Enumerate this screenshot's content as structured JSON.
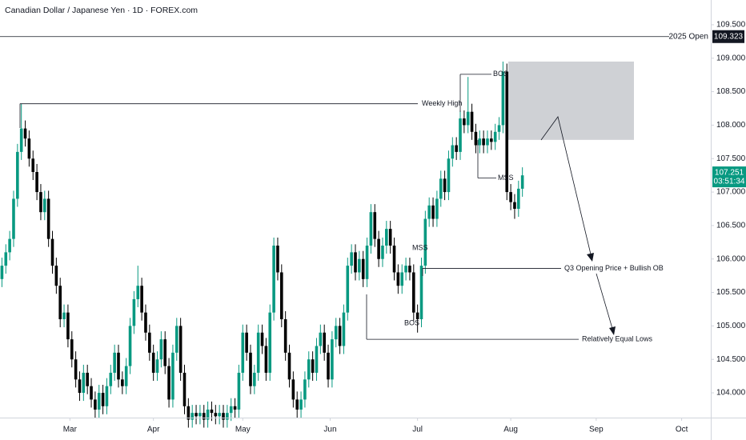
{
  "chart_data": {
    "type": "candlestick",
    "title": "Canadian Dollar / Japanese Yen · 1D · FOREX.com",
    "up_color": "#089981",
    "down_color": "#000000",
    "xlim": [
      -0.5,
      182.5
    ],
    "xticks": [
      {
        "value": 17.5,
        "label": "Mar"
      },
      {
        "value": 39,
        "label": "Apr"
      },
      {
        "value": 62,
        "label": "May"
      },
      {
        "value": 84.5,
        "label": "Jun"
      },
      {
        "value": 107,
        "label": "Jul"
      },
      {
        "value": 131,
        "label": "Aug"
      },
      {
        "value": 153,
        "label": "Sep"
      },
      {
        "value": 175,
        "label": "Oct"
      }
    ],
    "ylim": [
      103.63,
      109.87
    ],
    "yticks": [
      {
        "value": 104,
        "label": "104.000"
      },
      {
        "value": 104.5,
        "label": "104.500"
      },
      {
        "value": 105,
        "label": "105.000"
      },
      {
        "value": 105.5,
        "label": "105.500"
      },
      {
        "value": 106,
        "label": "106.000"
      },
      {
        "value": 106.5,
        "label": "106.500"
      },
      {
        "value": 107,
        "label": "107.000"
      },
      {
        "value": 107.5,
        "label": "107.500"
      },
      {
        "value": 108,
        "label": "108.000"
      },
      {
        "value": 108.5,
        "label": "108.500"
      },
      {
        "value": 109,
        "label": "109.000"
      },
      {
        "value": 109.5,
        "label": "109.500"
      }
    ],
    "candles": [
      [
        105.7,
        106.02,
        105.58,
        105.9
      ],
      [
        105.9,
        106.22,
        105.78,
        106.1
      ],
      [
        106.1,
        106.42,
        105.98,
        106.3
      ],
      [
        106.3,
        107.02,
        106.18,
        106.9
      ],
      [
        106.9,
        107.72,
        106.78,
        107.6
      ],
      [
        107.6,
        108.32,
        107.48,
        107.95
      ],
      [
        107.95,
        108.07,
        107.68,
        107.8
      ],
      [
        107.8,
        107.92,
        107.38,
        107.5
      ],
      [
        107.5,
        107.62,
        107.18,
        107.3
      ],
      [
        107.3,
        107.42,
        106.88,
        107.0
      ],
      [
        107.0,
        107.12,
        106.58,
        106.7
      ],
      [
        106.7,
        107.02,
        106.58,
        106.9
      ],
      [
        106.9,
        107.02,
        106.18,
        106.3
      ],
      [
        106.3,
        106.42,
        105.78,
        105.9
      ],
      [
        105.9,
        106.02,
        105.48,
        105.6
      ],
      [
        105.6,
        105.72,
        104.98,
        105.1
      ],
      [
        105.1,
        105.32,
        104.98,
        105.2
      ],
      [
        105.2,
        105.32,
        104.68,
        104.8
      ],
      [
        104.8,
        104.92,
        104.38,
        104.5
      ],
      [
        104.5,
        104.62,
        104.08,
        104.2
      ],
      [
        104.2,
        104.32,
        103.88,
        104.0
      ],
      [
        104.0,
        104.42,
        103.88,
        104.3
      ],
      [
        104.3,
        104.42,
        103.98,
        104.1
      ],
      [
        104.1,
        104.22,
        103.78,
        103.9
      ],
      [
        103.9,
        104.02,
        103.63,
        103.75
      ],
      [
        103.75,
        104.12,
        103.63,
        104.0
      ],
      [
        104.0,
        104.12,
        103.68,
        103.8
      ],
      [
        103.8,
        104.22,
        103.68,
        104.1
      ],
      [
        104.1,
        104.42,
        103.98,
        104.3
      ],
      [
        104.3,
        104.72,
        104.18,
        104.6
      ],
      [
        104.6,
        104.72,
        104.08,
        104.2
      ],
      [
        104.2,
        104.32,
        103.98,
        104.1
      ],
      [
        104.1,
        104.52,
        103.98,
        104.4
      ],
      [
        104.4,
        105.12,
        104.28,
        105.0
      ],
      [
        105.0,
        105.52,
        104.88,
        105.4
      ],
      [
        105.4,
        105.9,
        105.28,
        105.6
      ],
      [
        105.6,
        105.72,
        105.08,
        105.2
      ],
      [
        105.2,
        105.32,
        104.78,
        104.9
      ],
      [
        104.9,
        105.02,
        104.48,
        104.6
      ],
      [
        104.6,
        104.72,
        104.18,
        104.3
      ],
      [
        104.3,
        104.62,
        104.18,
        104.5
      ],
      [
        104.5,
        104.92,
        104.38,
        104.8
      ],
      [
        104.8,
        104.92,
        104.28,
        104.4
      ],
      [
        104.4,
        104.52,
        103.78,
        103.9
      ],
      [
        103.9,
        104.72,
        103.78,
        104.6
      ],
      [
        104.6,
        105.12,
        104.48,
        105.0
      ],
      [
        105.0,
        105.12,
        104.18,
        104.3
      ],
      [
        104.3,
        104.42,
        103.68,
        103.8
      ],
      [
        103.8,
        103.92,
        103.48,
        103.6
      ],
      [
        103.6,
        103.82,
        103.48,
        103.7
      ],
      [
        103.7,
        103.82,
        103.53,
        103.65
      ],
      [
        103.65,
        103.82,
        103.53,
        103.7
      ],
      [
        103.7,
        103.82,
        103.48,
        103.6
      ],
      [
        103.6,
        103.87,
        103.48,
        103.75
      ],
      [
        103.75,
        103.87,
        103.58,
        103.7
      ],
      [
        103.7,
        103.82,
        103.53,
        103.65
      ],
      [
        103.65,
        103.82,
        103.53,
        103.7
      ],
      [
        103.7,
        103.82,
        103.48,
        103.6
      ],
      [
        103.6,
        103.82,
        103.48,
        103.7
      ],
      [
        103.7,
        103.92,
        103.58,
        103.8
      ],
      [
        103.8,
        103.92,
        103.63,
        103.75
      ],
      [
        103.75,
        104.42,
        103.63,
        104.3
      ],
      [
        104.3,
        105.02,
        104.18,
        104.9
      ],
      [
        104.9,
        105.02,
        104.48,
        104.6
      ],
      [
        104.6,
        104.72,
        103.98,
        104.1
      ],
      [
        104.1,
        104.42,
        103.98,
        104.3
      ],
      [
        104.3,
        105.02,
        104.18,
        104.9
      ],
      [
        104.9,
        105.02,
        104.58,
        104.7
      ],
      [
        104.7,
        104.82,
        104.18,
        104.3
      ],
      [
        104.3,
        105.32,
        104.18,
        105.2
      ],
      [
        105.2,
        106.32,
        105.08,
        106.2
      ],
      [
        106.2,
        106.32,
        105.68,
        105.8
      ],
      [
        105.8,
        105.92,
        104.98,
        105.1
      ],
      [
        105.1,
        105.22,
        104.48,
        104.6
      ],
      [
        104.6,
        104.72,
        104.08,
        104.2
      ],
      [
        104.2,
        104.32,
        103.78,
        103.9
      ],
      [
        103.9,
        104.02,
        103.63,
        103.75
      ],
      [
        103.75,
        104.02,
        103.63,
        103.9
      ],
      [
        103.9,
        104.32,
        103.78,
        104.2
      ],
      [
        104.2,
        104.62,
        104.08,
        104.5
      ],
      [
        104.5,
        104.62,
        104.18,
        104.3
      ],
      [
        104.3,
        104.82,
        104.18,
        104.7
      ],
      [
        104.7,
        105.02,
        104.58,
        104.9
      ],
      [
        104.9,
        105.02,
        104.48,
        104.6
      ],
      [
        104.6,
        104.72,
        104.08,
        104.2
      ],
      [
        104.2,
        104.92,
        104.08,
        104.8
      ],
      [
        104.8,
        105.12,
        104.68,
        105.0
      ],
      [
        105.0,
        105.12,
        104.58,
        104.7
      ],
      [
        104.7,
        105.32,
        104.58,
        105.2
      ],
      [
        105.2,
        106.02,
        105.08,
        105.9
      ],
      [
        105.9,
        106.22,
        105.78,
        106.1
      ],
      [
        106.1,
        106.22,
        105.68,
        105.8
      ],
      [
        105.8,
        106.12,
        105.68,
        106.0
      ],
      [
        106.0,
        106.12,
        105.58,
        105.7
      ],
      [
        105.7,
        106.32,
        105.58,
        106.2
      ],
      [
        106.2,
        106.82,
        106.08,
        106.7
      ],
      [
        106.7,
        106.82,
        106.18,
        106.3
      ],
      [
        106.3,
        106.42,
        105.88,
        106.0
      ],
      [
        106.0,
        106.32,
        105.88,
        106.2
      ],
      [
        106.2,
        106.57,
        106.08,
        106.45
      ],
      [
        106.45,
        106.57,
        106.08,
        106.2
      ],
      [
        106.2,
        106.32,
        105.68,
        105.8
      ],
      [
        105.8,
        105.92,
        105.48,
        105.6
      ],
      [
        105.6,
        105.92,
        105.48,
        105.8
      ],
      [
        105.8,
        106.02,
        105.68,
        105.9
      ],
      [
        105.9,
        106.02,
        105.68,
        105.8
      ],
      [
        105.8,
        105.92,
        105.08,
        105.2
      ],
      [
        105.2,
        105.32,
        104.9,
        105.1
      ],
      [
        105.1,
        106.02,
        104.98,
        105.9
      ],
      [
        105.9,
        106.72,
        105.78,
        106.6
      ],
      [
        106.6,
        106.92,
        106.48,
        106.8
      ],
      [
        106.8,
        106.92,
        106.48,
        106.6
      ],
      [
        106.6,
        107.02,
        106.48,
        106.9
      ],
      [
        106.9,
        107.32,
        106.78,
        107.2
      ],
      [
        107.2,
        107.32,
        106.88,
        107.0
      ],
      [
        107.0,
        107.62,
        106.88,
        107.5
      ],
      [
        107.5,
        107.82,
        107.38,
        107.7
      ],
      [
        107.7,
        107.82,
        107.48,
        107.6
      ],
      [
        107.6,
        108.22,
        107.48,
        108.1
      ],
      [
        108.1,
        108.22,
        107.88,
        108.0
      ],
      [
        108.0,
        108.72,
        107.88,
        108.2
      ],
      [
        108.2,
        108.32,
        107.78,
        107.9
      ],
      [
        107.9,
        108.02,
        107.58,
        107.7
      ],
      [
        107.7,
        107.92,
        107.58,
        107.8
      ],
      [
        107.8,
        107.92,
        107.58,
        107.7
      ],
      [
        107.7,
        107.92,
        107.58,
        107.8
      ],
      [
        107.8,
        107.92,
        107.63,
        107.75
      ],
      [
        107.75,
        108.02,
        107.63,
        107.9
      ],
      [
        107.9,
        108.12,
        107.78,
        108.0
      ],
      [
        108.0,
        108.95,
        107.88,
        108.8
      ],
      [
        108.8,
        108.92,
        106.88,
        107.0
      ],
      [
        107.0,
        107.12,
        106.73,
        106.85
      ],
      [
        106.85,
        106.97,
        106.6,
        106.75
      ],
      [
        106.75,
        107.17,
        106.63,
        107.05
      ],
      [
        107.05,
        107.37,
        106.93,
        107.25
      ]
    ],
    "open_level": {
      "text": "2025 Open",
      "value": 109.323,
      "label": "109.323"
    },
    "last_price": {
      "value": 107.251,
      "label": "107.251",
      "countdown": "03:51:34"
    },
    "zone": {
      "low": 107.78,
      "high": 108.95
    },
    "annotations": [
      {
        "text": "Weekly High",
        "value": 108.32
      },
      {
        "text": "BOS",
        "value": 108.76
      },
      {
        "text": "MSS",
        "value": 107.21
      },
      {
        "text": "MSS",
        "value": 106.16
      },
      {
        "text": "Q3 Opening Price + Bullish OB",
        "value": 105.86
      },
      {
        "text": "BOS",
        "value": 105.04
      },
      {
        "text": "Relatively Equal Lows",
        "value": 104.8
      }
    ]
  }
}
